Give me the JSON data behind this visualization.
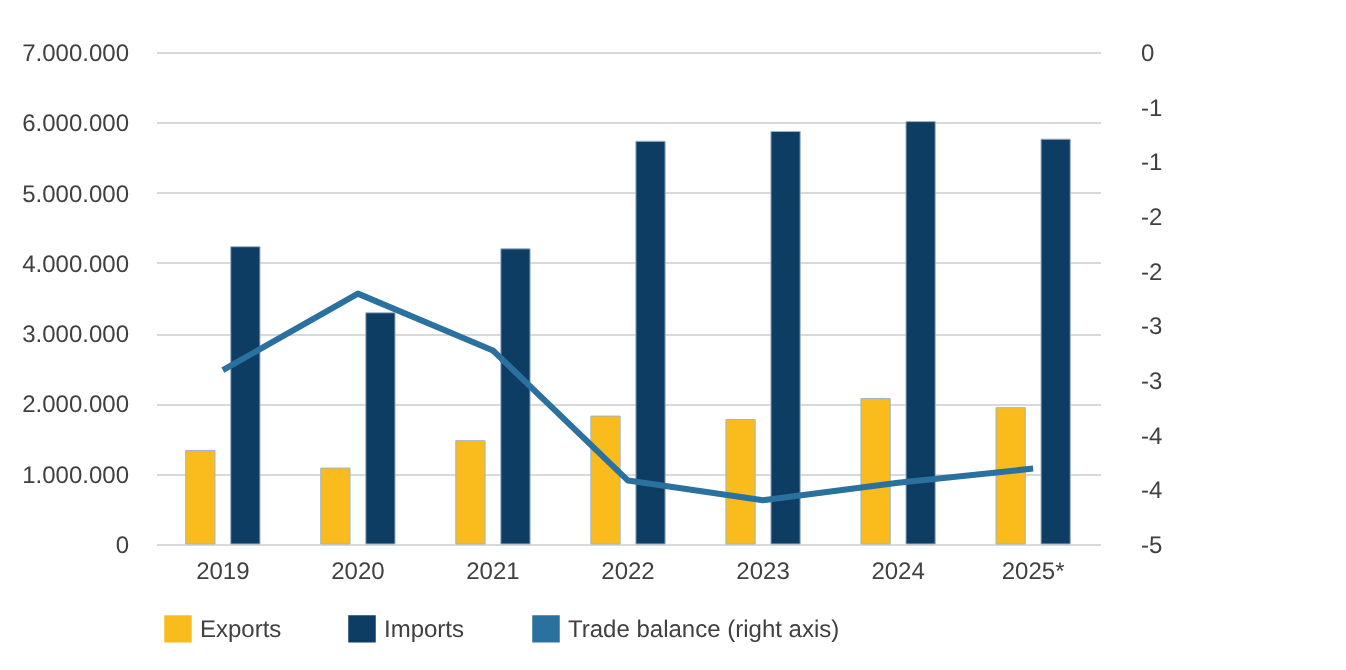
{
  "chart_data": {
    "type": "bar",
    "categories": [
      "2019",
      "2020",
      "2021",
      "2022",
      "2023",
      "2024",
      "2025*"
    ],
    "series": [
      {
        "name": "Exports",
        "color": "#f9bc1c",
        "values": [
          1330000,
          1080000,
          1470000,
          1820000,
          1770000,
          2070000,
          1940000
        ]
      },
      {
        "name": "Imports",
        "color": "#0e3d64",
        "values": [
          4230000,
          3290000,
          4200000,
          5730000,
          5870000,
          6010000,
          5760000
        ]
      },
      {
        "name": "Trade balance (right axis)",
        "type": "line",
        "axis": "y2",
        "color": "#2a71a0",
        "values": [
          -2.91,
          -2.21,
          -2.73,
          -3.92,
          -4.1,
          -3.94,
          -3.81
        ]
      }
    ],
    "ylim": [
      0,
      7000000
    ],
    "yticks": [
      {
        "value": 0,
        "label": "0"
      },
      {
        "value": 1000000,
        "label": "1.000.000"
      },
      {
        "value": 2000000,
        "label": "2.000.000"
      },
      {
        "value": 3000000,
        "label": "3.000.000"
      },
      {
        "value": 4000000,
        "label": "4.000.000"
      },
      {
        "value": 5000000,
        "label": "5.000.000"
      },
      {
        "value": 6000000,
        "label": "6.000.000"
      },
      {
        "value": 7000000,
        "label": "7.000.000"
      }
    ],
    "y2lim": [
      -4.5,
      0
    ],
    "y2ticks": [
      0,
      {
        "value": -0.5,
        "label": "-1"
      },
      -1,
      {
        "value": -1.5,
        "label": "-2"
      },
      -2,
      {
        "value": -2.5,
        "label": "-3"
      },
      -3,
      {
        "value": -3.5,
        "label": "-4"
      },
      -4,
      {
        "value": -4.5,
        "label": "-5"
      }
    ],
    "grid": "y",
    "legend": "bottom"
  }
}
